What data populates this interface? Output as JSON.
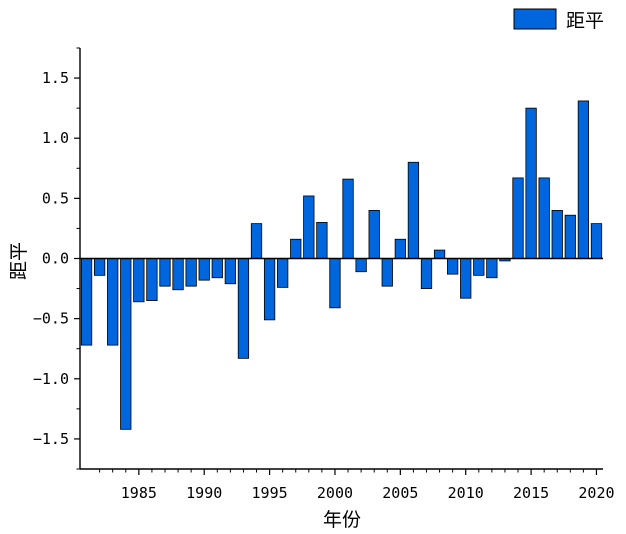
{
  "chart_data": {
    "type": "bar",
    "title": "",
    "xlabel": "年份",
    "ylabel": "距平",
    "legend": {
      "entries": [
        "距平"
      ],
      "placement": "top-right"
    },
    "ylim": [
      -1.75,
      1.75
    ],
    "xlim": [
      1980.5,
      2020.5
    ],
    "y_ticks": [
      -1.5,
      -1.0,
      -0.5,
      0.0,
      0.5,
      1.0,
      1.5
    ],
    "y_tick_labels": [
      "−1.5",
      "−1.0",
      "−0.5",
      "0.0",
      "0.5",
      "1.0",
      "1.5"
    ],
    "x_ticks": [
      1985,
      1990,
      1995,
      2000,
      2005,
      2010,
      2015,
      2020
    ],
    "x_tick_labels": [
      "1985",
      "1990",
      "1995",
      "2000",
      "2005",
      "2010",
      "2015",
      "2020"
    ],
    "colors": {
      "bar": "#0066dd",
      "edge": "#000000"
    },
    "categories": [
      1981,
      1982,
      1983,
      1984,
      1985,
      1986,
      1987,
      1988,
      1989,
      1990,
      1991,
      1992,
      1993,
      1994,
      1995,
      1996,
      1997,
      1998,
      1999,
      2000,
      2001,
      2002,
      2003,
      2004,
      2005,
      2006,
      2007,
      2008,
      2009,
      2010,
      2011,
      2012,
      2013,
      2014,
      2015,
      2016,
      2017,
      2018,
      2019,
      2020
    ],
    "series": [
      {
        "name": "距平",
        "values": [
          -0.72,
          -0.14,
          -0.72,
          -1.42,
          -0.36,
          -0.35,
          -0.23,
          -0.26,
          -0.23,
          -0.18,
          -0.16,
          -0.21,
          -0.83,
          0.29,
          -0.51,
          -0.24,
          0.16,
          0.52,
          0.3,
          -0.41,
          0.66,
          -0.11,
          0.4,
          -0.23,
          0.16,
          0.8,
          -0.25,
          0.07,
          -0.13,
          -0.33,
          -0.14,
          -0.16,
          -0.02,
          0.67,
          1.25,
          0.67,
          0.4,
          0.36,
          1.31,
          0.29
        ]
      }
    ]
  }
}
